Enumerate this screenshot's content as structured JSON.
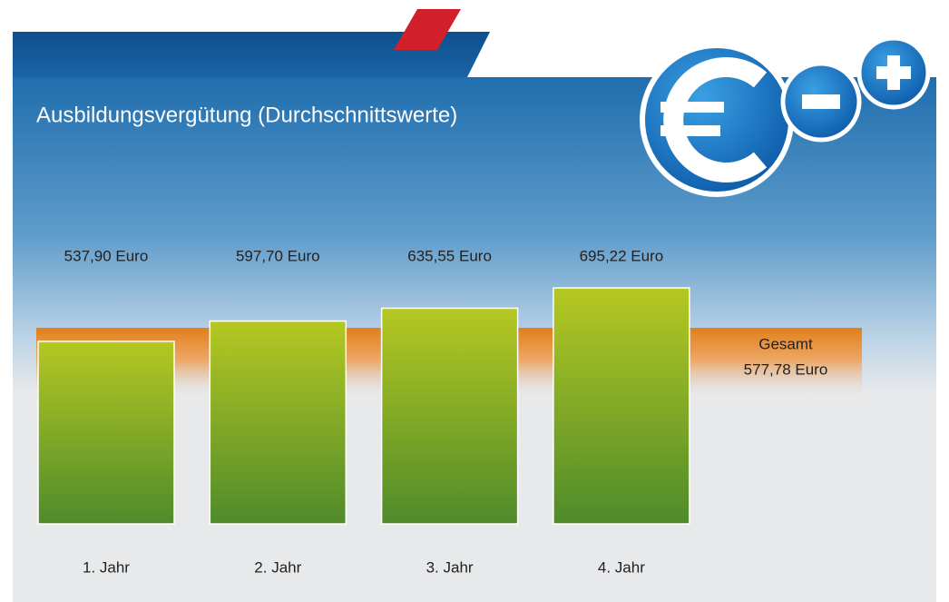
{
  "chart_data": {
    "type": "bar",
    "title": "Ausbildungsvergütung (Durchschnittswerte)",
    "categories": [
      "1. Jahr",
      "2. Jahr",
      "3. Jahr",
      "4. Jahr"
    ],
    "values": [
      537.9,
      597.7,
      635.55,
      695.22
    ],
    "value_labels": [
      "537,90 Euro",
      "597,70 Euro",
      "635,55 Euro",
      "695,22 Euro"
    ],
    "reference": {
      "label": "Gesamt",
      "value": 577.78,
      "value_label": "577,78 Euro"
    }
  }
}
